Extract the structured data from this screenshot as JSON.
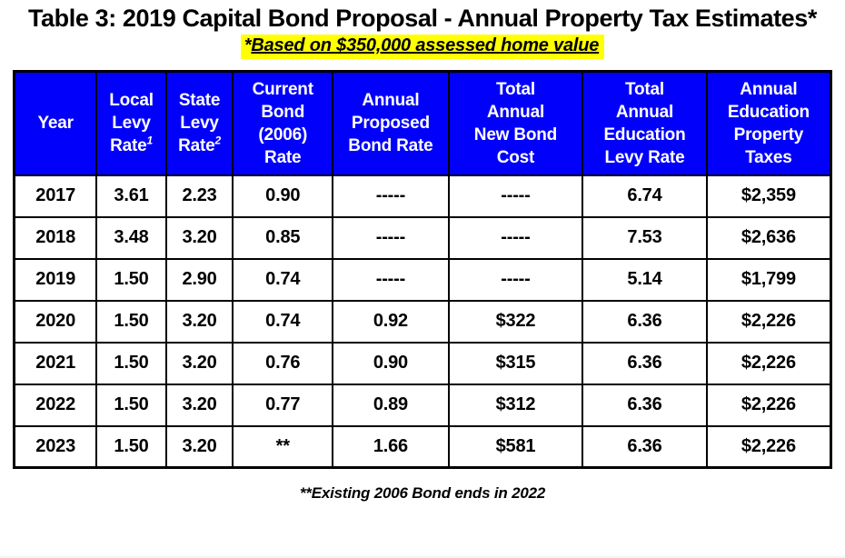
{
  "title": "Table 3: 2019 Capital Bond Proposal - Annual Property Tax Estimates*",
  "subtitle": {
    "marker": "*",
    "text": "Based on $350,000 assessed home value"
  },
  "table": {
    "columns": [
      {
        "label": "Year",
        "lines": [
          "Year"
        ],
        "sup": null
      },
      {
        "label": "Local Levy Rate",
        "lines": [
          "Local",
          "Levy",
          "Rate"
        ],
        "sup": "1"
      },
      {
        "label": "State Levy Rate",
        "lines": [
          "State",
          "Levy",
          "Rate"
        ],
        "sup": "2"
      },
      {
        "label": "Current Bond (2006) Rate",
        "lines": [
          "Current",
          "Bond",
          "(2006)",
          "Rate"
        ],
        "sup": null
      },
      {
        "label": "Annual Proposed Bond Rate",
        "lines": [
          "Annual",
          "Proposed",
          "Bond Rate"
        ],
        "sup": null
      },
      {
        "label": "Total Annual New Bond Cost",
        "lines": [
          "Total",
          "Annual",
          "New Bond",
          "Cost"
        ],
        "sup": null
      },
      {
        "label": "Total Annual Education Levy Rate",
        "lines": [
          "Total",
          "Annual",
          "Education",
          "Levy Rate"
        ],
        "sup": null
      },
      {
        "label": "Annual Education Property Taxes",
        "lines": [
          "Annual",
          "Education",
          "Property",
          "Taxes"
        ],
        "sup": null
      }
    ],
    "rows": [
      [
        "2017",
        "3.61",
        "2.23",
        "0.90",
        "-----",
        "-----",
        "6.74",
        "$2,359"
      ],
      [
        "2018",
        "3.48",
        "3.20",
        "0.85",
        "-----",
        "-----",
        "7.53",
        "$2,636"
      ],
      [
        "2019",
        "1.50",
        "2.90",
        "0.74",
        "-----",
        "-----",
        "5.14",
        "$1,799"
      ],
      [
        "2020",
        "1.50",
        "3.20",
        "0.74",
        "0.92",
        "$322",
        "6.36",
        "$2,226"
      ],
      [
        "2021",
        "1.50",
        "3.20",
        "0.76",
        "0.90",
        "$315",
        "6.36",
        "$2,226"
      ],
      [
        "2022",
        "1.50",
        "3.20",
        "0.77",
        "0.89",
        "$312",
        "6.36",
        "$2,226"
      ],
      [
        "2023",
        "1.50",
        "3.20",
        "**",
        "1.66",
        "$581",
        "6.36",
        "$2,226"
      ]
    ]
  },
  "footnote": "**Existing 2006 Bond ends in 2022",
  "colors": {
    "header_bg": "#0101fb",
    "header_text": "#ffffff",
    "highlight": "#ffff00",
    "border": "#000000"
  },
  "chart_data": {
    "type": "table",
    "title": "Table 3: 2019 Capital Bond Proposal - Annual Property Tax Estimates*",
    "subtitle": "*Based on $350,000 assessed home value",
    "columns": [
      "Year",
      "Local Levy Rate¹",
      "State Levy Rate²",
      "Current Bond (2006) Rate",
      "Annual Proposed Bond Rate",
      "Total Annual New Bond Cost",
      "Total Annual Education Levy Rate",
      "Annual Education Property Taxes"
    ],
    "rows": [
      [
        "2017",
        "3.61",
        "2.23",
        "0.90",
        "-----",
        "-----",
        "6.74",
        "$2,359"
      ],
      [
        "2018",
        "3.48",
        "3.20",
        "0.85",
        "-----",
        "-----",
        "7.53",
        "$2,636"
      ],
      [
        "2019",
        "1.50",
        "2.90",
        "0.74",
        "-----",
        "-----",
        "5.14",
        "$1,799"
      ],
      [
        "2020",
        "1.50",
        "3.20",
        "0.74",
        "0.92",
        "$322",
        "6.36",
        "$2,226"
      ],
      [
        "2021",
        "1.50",
        "3.20",
        "0.76",
        "0.90",
        "$315",
        "6.36",
        "$2,226"
      ],
      [
        "2022",
        "1.50",
        "3.20",
        "0.77",
        "0.89",
        "$312",
        "6.36",
        "$2,226"
      ],
      [
        "2023",
        "1.50",
        "3.20",
        "**",
        "1.66",
        "$581",
        "6.36",
        "$2,226"
      ]
    ],
    "annotations": [
      "**Existing 2006 Bond ends in 2022"
    ]
  }
}
